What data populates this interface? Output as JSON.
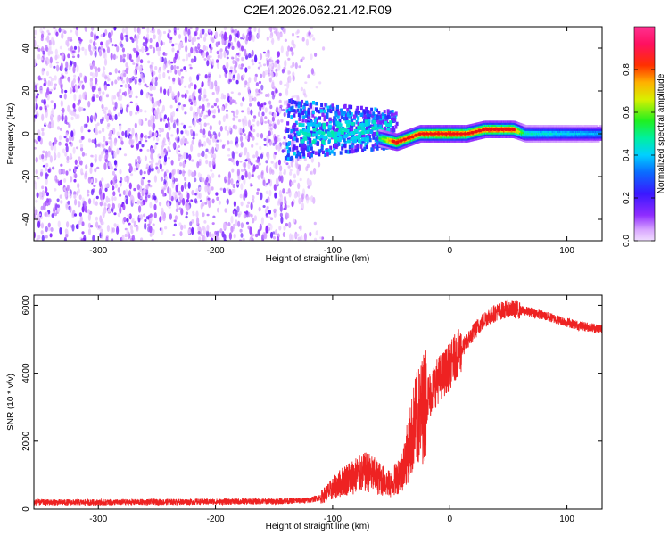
{
  "title": "C2E4.2026.062.21.42.R09",
  "colors": {
    "line": "#ee2222",
    "axis": "#000000"
  },
  "chart_data": [
    {
      "type": "heatmap",
      "name": "spectrogram",
      "xlabel": "Height of straight line (km)",
      "ylabel": "Frequency (Hz)",
      "xlim": [
        -355,
        130
      ],
      "ylim": [
        -50,
        50
      ],
      "xticks": [
        -300,
        -200,
        -100,
        0,
        100
      ],
      "yticks": [
        -40,
        -20,
        0,
        20,
        40
      ],
      "xtick_labels": [
        "-300",
        "-200",
        "-100",
        "0",
        "100"
      ],
      "ytick_labels": [
        "-40",
        "-20",
        "0",
        "20",
        "40"
      ],
      "colorbar": {
        "label": "Normalized spectral amplitude",
        "range": [
          0,
          1
        ],
        "ticks": [
          0.0,
          0.2,
          0.4,
          0.6,
          0.8
        ],
        "tick_labels": [
          "0.0",
          "0.2",
          "0.4",
          "0.6",
          "0.8"
        ]
      },
      "features": {
        "noise_region_km": [
          -355,
          -130
        ],
        "carrier_ridge": [
          {
            "x": -125,
            "y": 2,
            "amp": 0.35
          },
          {
            "x": -100,
            "y": 3,
            "amp": 0.4
          },
          {
            "x": -80,
            "y": 0,
            "amp": 0.45
          },
          {
            "x": -60,
            "y": -2,
            "amp": 0.55
          },
          {
            "x": -45,
            "y": -4,
            "amp": 0.95
          },
          {
            "x": -35,
            "y": -2,
            "amp": 0.9
          },
          {
            "x": -25,
            "y": 0,
            "amp": 0.9
          },
          {
            "x": 0,
            "y": 0,
            "amp": 0.95
          },
          {
            "x": 15,
            "y": 0,
            "amp": 0.9
          },
          {
            "x": 30,
            "y": 2,
            "amp": 0.9
          },
          {
            "x": 55,
            "y": 2,
            "amp": 0.9
          },
          {
            "x": 65,
            "y": 0,
            "amp": 0.5
          },
          {
            "x": 130,
            "y": 0,
            "amp": 0.4
          }
        ]
      }
    },
    {
      "type": "line",
      "name": "snr",
      "xlabel": "Height of straight line (km)",
      "ylabel": "SNR (10 * v/v)",
      "xlim": [
        -355,
        130
      ],
      "ylim": [
        0,
        6300
      ],
      "xticks": [
        -300,
        -200,
        -100,
        0,
        100
      ],
      "yticks": [
        0,
        2000,
        4000,
        6000
      ],
      "xtick_labels": [
        "-300",
        "-200",
        "-100",
        "0",
        "100"
      ],
      "ytick_labels": [
        "0",
        "2000",
        "4000",
        "6000"
      ],
      "series": [
        {
          "name": "SNR",
          "x": [
            -355,
            -300,
            -250,
            -200,
            -150,
            -120,
            -110,
            -100,
            -90,
            -80,
            -70,
            -60,
            -50,
            -40,
            -35,
            -30,
            -25,
            -20,
            -15,
            -10,
            -5,
            0,
            5,
            10,
            20,
            30,
            40,
            50,
            60,
            70,
            80,
            90,
            100,
            110,
            120,
            130
          ],
          "values": [
            200,
            200,
            210,
            220,
            230,
            260,
            350,
            600,
            850,
            1000,
            1100,
            900,
            700,
            1200,
            1800,
            2500,
            2800,
            3200,
            3500,
            3800,
            4000,
            4200,
            4500,
            4700,
            5200,
            5600,
            5800,
            5900,
            5850,
            5800,
            5700,
            5600,
            5500,
            5400,
            5350,
            5300
          ]
        }
      ]
    }
  ]
}
